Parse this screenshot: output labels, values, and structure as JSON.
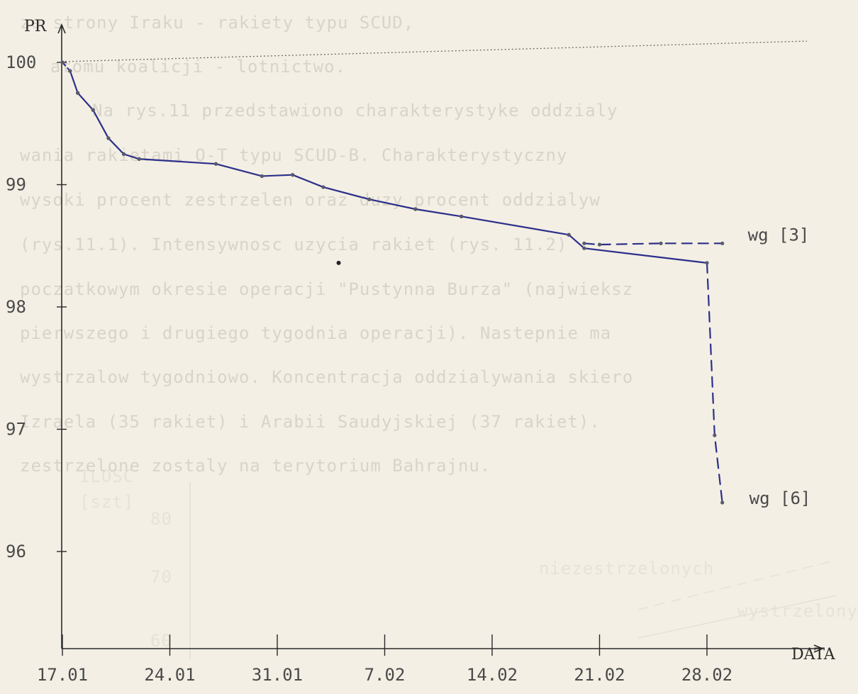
{
  "chart_data": {
    "type": "line",
    "ylabel": "PR",
    "xlabel": "DATA",
    "ylim": [
      95.2,
      100.3
    ],
    "yticks": [
      100,
      99,
      98,
      97,
      96
    ],
    "xticks": [
      "17.01",
      "24.01",
      "31.01",
      "7.02",
      "14.02",
      "21.02",
      "28.02"
    ],
    "x_start": "17.01",
    "x_end": "03.03",
    "grid": false,
    "reference_line": 100,
    "series": [
      {
        "name": "wg [3]",
        "line_style": "dashed",
        "x": [
          "17.01",
          "17.5",
          "18.01",
          "19.01",
          "20.01",
          "21.01",
          "22.01",
          "27.01",
          "30.01",
          "01.02",
          "03.02",
          "06.02",
          "09.02",
          "12.02",
          "19.02",
          "20.02",
          "21.02",
          "25.02",
          "01.03"
        ],
        "values": [
          100.0,
          99.93,
          99.75,
          99.61,
          99.38,
          99.25,
          99.21,
          99.17,
          99.07,
          99.08,
          98.98,
          98.88,
          98.8,
          98.74,
          98.59,
          98.52,
          98.51,
          98.52,
          98.52
        ]
      },
      {
        "name": "wg [6]",
        "line_style": "solid-then-dashed",
        "x": [
          "17.01",
          "17.5",
          "18.01",
          "19.01",
          "20.01",
          "21.01",
          "22.01",
          "27.01",
          "30.01",
          "01.02",
          "03.02",
          "06.02",
          "09.02",
          "12.02",
          "19.02",
          "20.02",
          "28.02",
          "28.5",
          "01.03"
        ],
        "values": [
          100.0,
          99.93,
          99.75,
          99.61,
          99.38,
          99.25,
          99.21,
          99.17,
          99.07,
          99.08,
          98.98,
          98.88,
          98.8,
          98.74,
          98.59,
          98.48,
          98.36,
          96.95,
          96.4
        ]
      }
    ],
    "outlier_point": {
      "x": "04.02",
      "y": 98.36
    }
  },
  "background_text": [
    "ze strony Iraku - rakiety typu SCUD,",
    "- atomu koalicji - lotnictwo.",
    "Na rys.11 przedstawiono charakterystyke oddzialy",
    "wania rakietami O-T typu SCUD-B. Charakterystyczny",
    "wysoki procent zestrzelen oraz duzy procent oddzialyw",
    "(rys.11.1). Intensywnosc uzycia rakiet (rys. 11.2)",
    "poczatkowym okresie operacji \"Pustynna Burza\" (najwieksz",
    "pierwszego i drugiego tygodnia operacji). Nastepnie ma",
    "wystrzalow tygodniowo. Koncentracja oddzialywania skiero",
    "Izraela (35 rakiet) i Arabii Saudyjskiej (37 rakiet).",
    "zestrzelone zostaly na terytorium Bahrajnu."
  ],
  "bleed_chart": {
    "ylabel_line1": "ILOSC",
    "ylabel_line2": "[szt]",
    "tick_80": "80",
    "tick_70": "70",
    "tick_60": "60",
    "series1": "niezestrzelonych",
    "series2": "wystrzelonych"
  }
}
